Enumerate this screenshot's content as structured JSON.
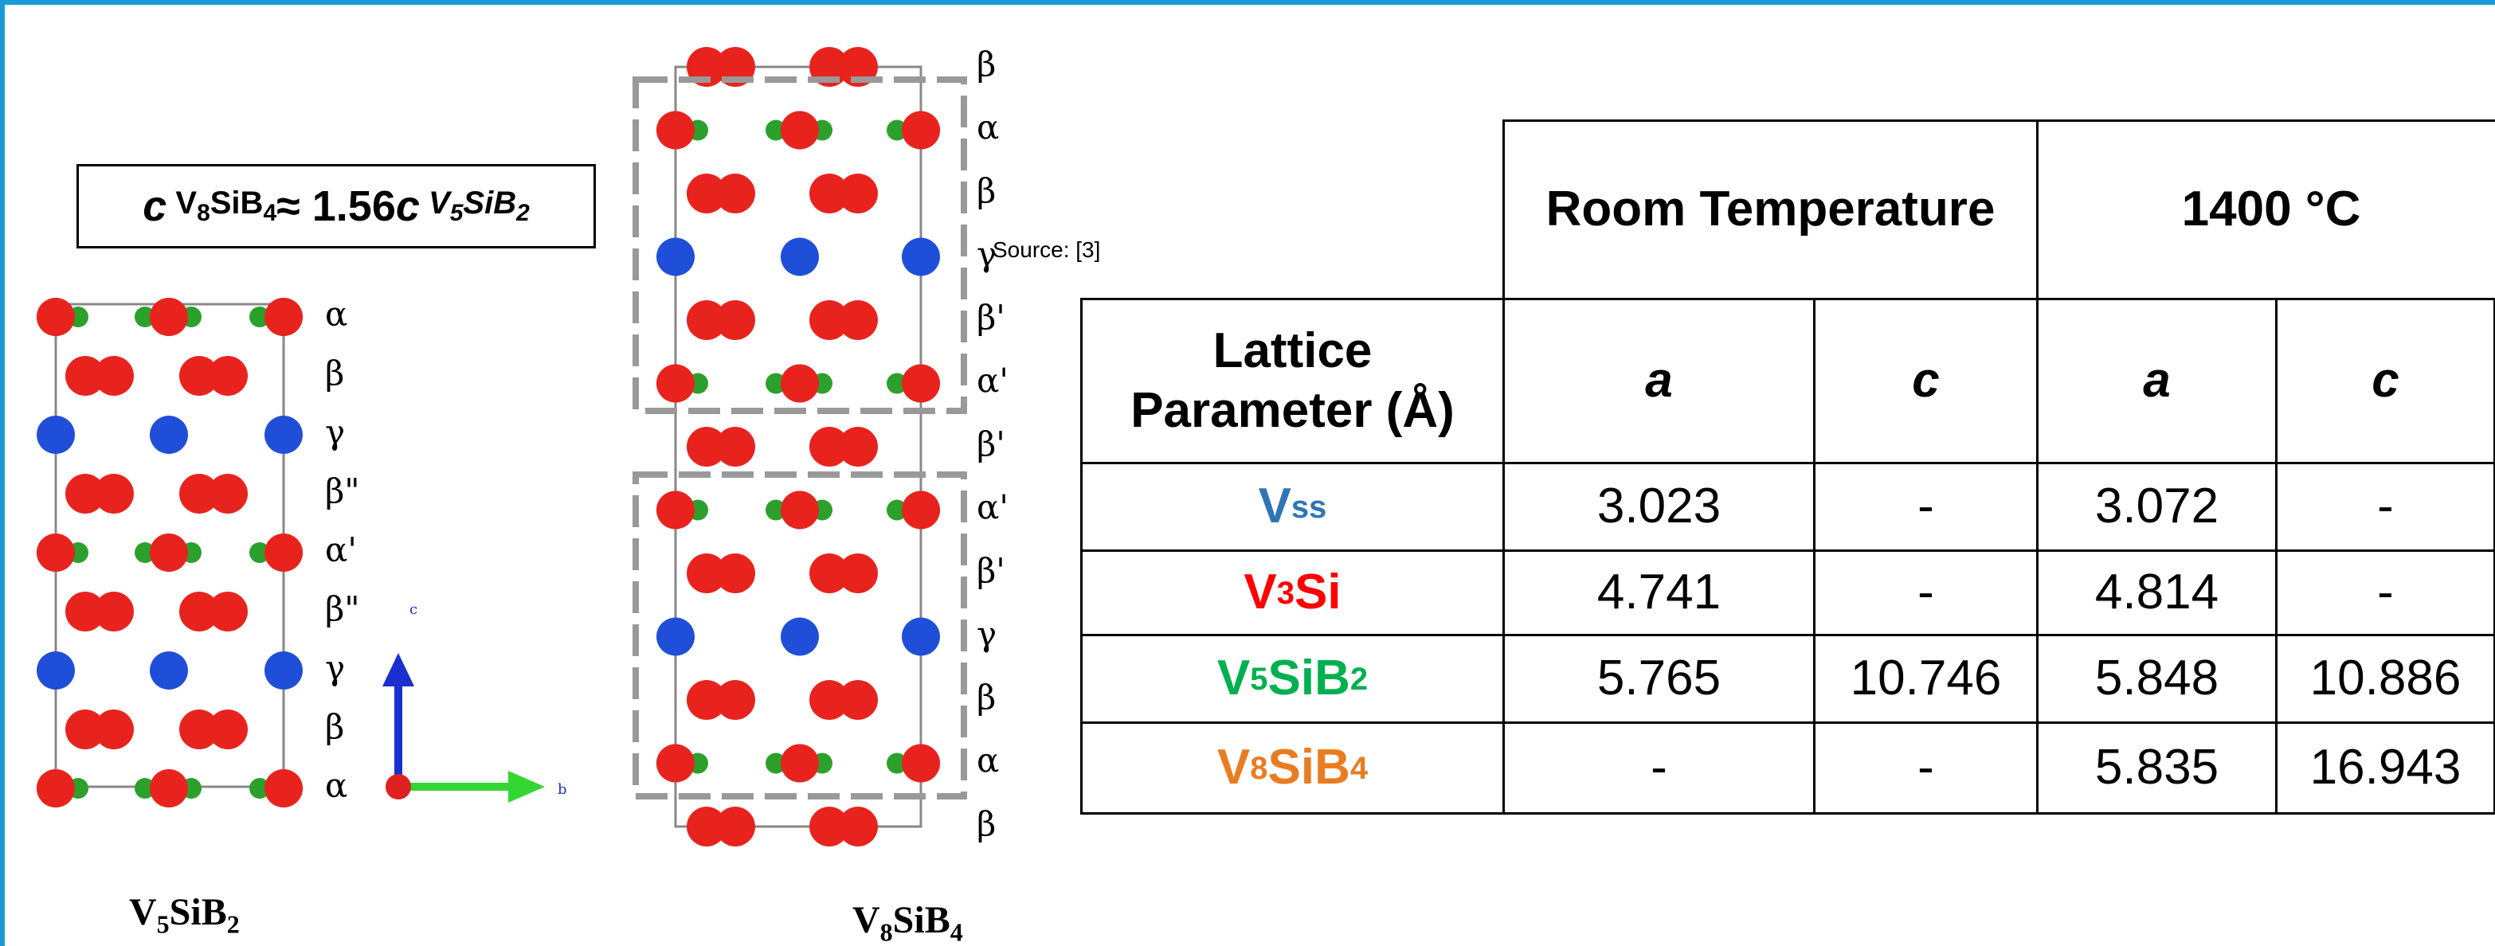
{
  "formula": {
    "parts": [
      "c",
      "V",
      "8",
      "SiB",
      "4",
      "≈ 1.56",
      "c",
      "V",
      "5",
      "SiB",
      "2"
    ]
  },
  "structures": [
    {
      "caption": [
        "V",
        "5",
        "SiB",
        "2"
      ],
      "layers": [
        "α",
        "β",
        "γ",
        "β\"",
        "α'",
        "β\"",
        "γ",
        "β",
        "α"
      ]
    },
    {
      "caption": [
        "V",
        "8",
        "SiB",
        "4"
      ],
      "layers": [
        "β",
        "α",
        "β",
        "γ",
        "β'",
        "α'",
        "β'",
        "α'",
        "β'",
        "γ",
        "β",
        "α",
        "β"
      ]
    }
  ],
  "axes": {
    "c": "c",
    "b": "b"
  },
  "source": "Source: [3]",
  "table": {
    "groups": [
      "Room Temperature",
      "1400 °C"
    ],
    "row_header": "Lattice Parameter (Å)",
    "columns": [
      "a",
      "c",
      "a",
      "c"
    ],
    "rows": [
      {
        "phase": [
          "V",
          "ss"
        ],
        "color": "#2e75b6",
        "values": [
          3.023,
          "-",
          3.072,
          "-"
        ]
      },
      {
        "phase": [
          "V",
          "3",
          "Si"
        ],
        "color": "#ff0000",
        "values": [
          4.741,
          "-",
          4.814,
          "-"
        ]
      },
      {
        "phase": [
          "V",
          "5",
          "SiB",
          "2"
        ],
        "color": "#00b050",
        "values": [
          5.765,
          10.746,
          5.848,
          10.886
        ]
      },
      {
        "phase": [
          "V",
          "8",
          "SiB",
          "4"
        ],
        "color": "#e97c21",
        "values": [
          "-",
          "-",
          5.835,
          16.943
        ]
      }
    ]
  }
}
